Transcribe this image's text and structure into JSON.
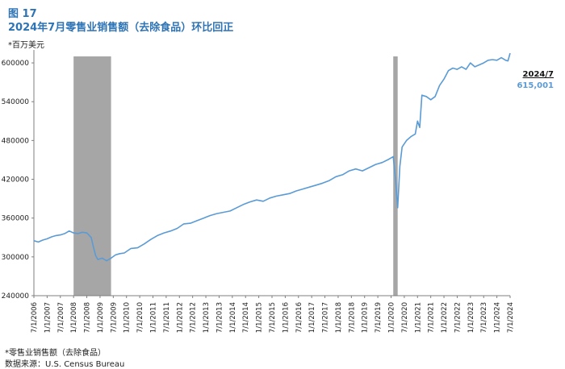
{
  "figure_label": "图 17",
  "title": "2024年7月零售业销售额（去除食品）环比回正",
  "unit_label": "*百万美元",
  "footnote": "*零售业销售额（去除食品）",
  "source": "数据来源：U.S. Census Bureau",
  "chart_data": {
    "type": "line",
    "title": "2024年7月零售业销售额（去除食品）环比回正",
    "xlabel": "",
    "ylabel": "",
    "ylim": [
      240000,
      620000
    ],
    "yticks": [
      240000,
      300000,
      360000,
      420000,
      480000,
      540000,
      600000
    ],
    "ytick_labels": [
      "240000",
      "300000",
      "360000",
      "420000",
      "480000",
      "540000",
      "600000"
    ],
    "xtick_labels": [
      "7/1/2006",
      "1/1/2007",
      "7/1/2007",
      "1/1/2008",
      "7/1/2008",
      "1/1/2009",
      "7/1/2009",
      "1/1/2010",
      "7/1/2010",
      "1/1/2011",
      "7/1/2011",
      "1/1/2012",
      "7/1/2012",
      "1/1/2013",
      "7/1/2013",
      "1/1/2014",
      "7/1/2014",
      "1/1/2015",
      "7/1/2015",
      "1/1/2016",
      "7/1/2016",
      "1/1/2017",
      "7/1/2017",
      "1/1/2018",
      "7/1/2018",
      "1/1/2019",
      "7/1/2019",
      "1/1/2020",
      "7/1/2020",
      "1/1/2021",
      "7/1/2021",
      "1/1/2022",
      "7/1/2022",
      "1/1/2023",
      "7/1/2023",
      "1/1/2024",
      "7/1/2024"
    ],
    "grid": false,
    "line_color": "#5B9BD5",
    "shade_color": "#A6A6A6",
    "shaded_periods": [
      [
        "2008-01",
        "2009-06"
      ],
      [
        "2020-02",
        "2020-04"
      ]
    ],
    "series": [
      {
        "name": "",
        "points": [
          [
            "2006-07",
            325000
          ],
          [
            "2006-09",
            323000
          ],
          [
            "2006-11",
            326000
          ],
          [
            "2007-01",
            328000
          ],
          [
            "2007-03",
            331000
          ],
          [
            "2007-05",
            333000
          ],
          [
            "2007-07",
            334000
          ],
          [
            "2007-09",
            336000
          ],
          [
            "2007-11",
            340000
          ],
          [
            "2008-01",
            337000
          ],
          [
            "2008-03",
            336000
          ],
          [
            "2008-05",
            338000
          ],
          [
            "2008-07",
            337000
          ],
          [
            "2008-09",
            330000
          ],
          [
            "2008-10",
            315000
          ],
          [
            "2008-11",
            302000
          ],
          [
            "2008-12",
            296000
          ],
          [
            "2009-02",
            298000
          ],
          [
            "2009-04",
            294000
          ],
          [
            "2009-06",
            298000
          ],
          [
            "2009-08",
            303000
          ],
          [
            "2009-10",
            305000
          ],
          [
            "2009-12",
            306000
          ],
          [
            "2010-03",
            313000
          ],
          [
            "2010-06",
            314000
          ],
          [
            "2010-09",
            320000
          ],
          [
            "2010-12",
            327000
          ],
          [
            "2011-03",
            333000
          ],
          [
            "2011-06",
            337000
          ],
          [
            "2011-09",
            340000
          ],
          [
            "2011-12",
            344000
          ],
          [
            "2012-03",
            351000
          ],
          [
            "2012-06",
            352000
          ],
          [
            "2012-09",
            356000
          ],
          [
            "2012-12",
            360000
          ],
          [
            "2013-03",
            364000
          ],
          [
            "2013-06",
            367000
          ],
          [
            "2013-09",
            369000
          ],
          [
            "2013-12",
            371000
          ],
          [
            "2014-03",
            376000
          ],
          [
            "2014-06",
            381000
          ],
          [
            "2014-09",
            385000
          ],
          [
            "2014-12",
            388000
          ],
          [
            "2015-03",
            386000
          ],
          [
            "2015-06",
            391000
          ],
          [
            "2015-09",
            394000
          ],
          [
            "2015-12",
            396000
          ],
          [
            "2016-03",
            398000
          ],
          [
            "2016-06",
            402000
          ],
          [
            "2016-09",
            405000
          ],
          [
            "2016-12",
            408000
          ],
          [
            "2017-03",
            411000
          ],
          [
            "2017-06",
            414000
          ],
          [
            "2017-09",
            418000
          ],
          [
            "2017-12",
            424000
          ],
          [
            "2018-03",
            427000
          ],
          [
            "2018-06",
            433000
          ],
          [
            "2018-09",
            436000
          ],
          [
            "2018-12",
            433000
          ],
          [
            "2019-03",
            438000
          ],
          [
            "2019-06",
            443000
          ],
          [
            "2019-09",
            446000
          ],
          [
            "2019-12",
            451000
          ],
          [
            "2020-02",
            455000
          ],
          [
            "2020-03",
            420000
          ],
          [
            "2020-04",
            376000
          ],
          [
            "2020-05",
            440000
          ],
          [
            "2020-06",
            470000
          ],
          [
            "2020-08",
            480000
          ],
          [
            "2020-10",
            486000
          ],
          [
            "2020-12",
            490000
          ],
          [
            "2021-01",
            510000
          ],
          [
            "2021-02",
            500000
          ],
          [
            "2021-03",
            550000
          ],
          [
            "2021-05",
            548000
          ],
          [
            "2021-07",
            543000
          ],
          [
            "2021-09",
            548000
          ],
          [
            "2021-11",
            565000
          ],
          [
            "2022-01",
            575000
          ],
          [
            "2022-03",
            588000
          ],
          [
            "2022-05",
            592000
          ],
          [
            "2022-07",
            590000
          ],
          [
            "2022-09",
            594000
          ],
          [
            "2022-11",
            590000
          ],
          [
            "2023-01",
            600000
          ],
          [
            "2023-03",
            594000
          ],
          [
            "2023-05",
            597000
          ],
          [
            "2023-07",
            600000
          ],
          [
            "2023-09",
            604000
          ],
          [
            "2023-11",
            605000
          ],
          [
            "2024-01",
            604000
          ],
          [
            "2024-03",
            608000
          ],
          [
            "2024-05",
            604000
          ],
          [
            "2024-06",
            603000
          ],
          [
            "2024-07",
            615001
          ]
        ]
      }
    ],
    "annotation": {
      "date": "2024/7",
      "value": "615,001"
    }
  }
}
